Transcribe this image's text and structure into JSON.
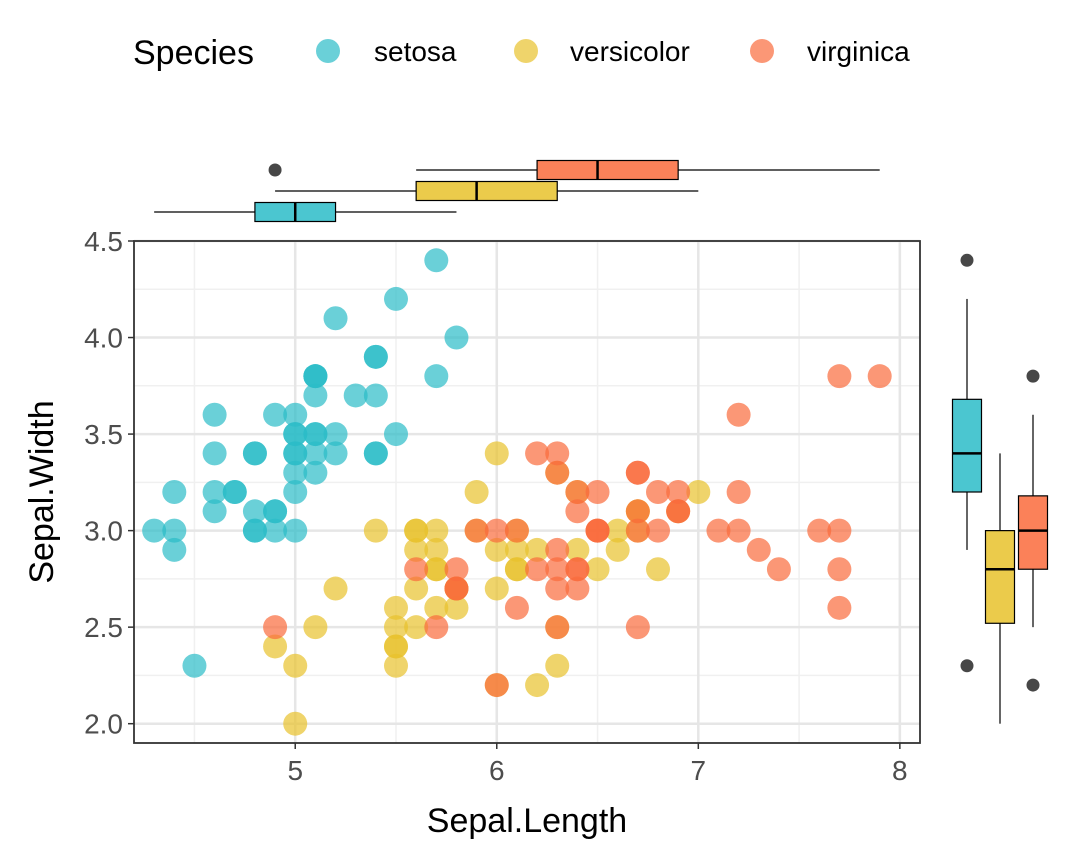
{
  "chart_data": {
    "type": "scatter",
    "xlabel": "Sepal.Length",
    "ylabel": "Sepal.Width",
    "xlim": [
      4.2,
      8.1
    ],
    "ylim": [
      1.9,
      4.5
    ],
    "x_ticks": [
      "5",
      "6",
      "7",
      "8"
    ],
    "y_ticks": [
      "2.0",
      "2.5",
      "3.0",
      "3.5",
      "4.0",
      "4.5"
    ],
    "grid": true,
    "legend": {
      "title": "Species",
      "position": "top",
      "entries": [
        "setosa",
        "versicolor",
        "virginica"
      ]
    },
    "colors": {
      "setosa": "#2bbcc8",
      "versicolor": "#e8c22c",
      "virginica": "#fa6b3c"
    },
    "series": [
      {
        "name": "setosa",
        "x": [
          5.1,
          4.9,
          4.7,
          4.6,
          5.0,
          5.4,
          4.6,
          5.0,
          4.4,
          4.9,
          5.4,
          4.8,
          4.8,
          4.3,
          5.8,
          5.7,
          5.4,
          5.1,
          5.7,
          5.1,
          5.4,
          5.1,
          4.6,
          5.1,
          4.8,
          5.0,
          5.0,
          5.2,
          5.2,
          4.7,
          4.8,
          5.4,
          5.2,
          5.5,
          4.9,
          5.0,
          5.5,
          4.9,
          4.4,
          5.1,
          5.0,
          4.5,
          4.4,
          5.0,
          5.1,
          4.8,
          5.1,
          4.6,
          5.3,
          5.0
        ],
        "y": [
          3.5,
          3.0,
          3.2,
          3.1,
          3.6,
          3.9,
          3.4,
          3.4,
          2.9,
          3.1,
          3.7,
          3.4,
          3.0,
          3.0,
          4.0,
          4.4,
          3.9,
          3.5,
          3.8,
          3.8,
          3.4,
          3.7,
          3.6,
          3.3,
          3.4,
          3.0,
          3.4,
          3.5,
          3.4,
          3.2,
          3.1,
          3.4,
          4.1,
          4.2,
          3.1,
          3.2,
          3.5,
          3.6,
          3.0,
          3.4,
          3.5,
          2.3,
          3.2,
          3.5,
          3.8,
          3.0,
          3.8,
          3.2,
          3.7,
          3.3
        ]
      },
      {
        "name": "versicolor",
        "x": [
          7.0,
          6.4,
          6.9,
          5.5,
          6.5,
          5.7,
          6.3,
          4.9,
          6.6,
          5.2,
          5.0,
          5.9,
          6.0,
          6.1,
          5.6,
          6.7,
          5.6,
          5.8,
          6.2,
          5.6,
          5.9,
          6.1,
          6.3,
          6.1,
          6.4,
          6.6,
          6.8,
          6.7,
          6.0,
          5.7,
          5.5,
          5.5,
          5.8,
          6.0,
          5.4,
          6.0,
          6.7,
          6.3,
          5.6,
          5.5,
          5.5,
          6.1,
          5.8,
          5.0,
          5.6,
          5.7,
          5.7,
          6.2,
          5.1,
          5.7
        ],
        "y": [
          3.2,
          3.2,
          3.1,
          2.3,
          2.8,
          2.8,
          3.3,
          2.4,
          2.9,
          2.7,
          2.0,
          3.0,
          2.2,
          2.9,
          2.9,
          3.1,
          3.0,
          2.7,
          2.2,
          2.5,
          3.2,
          2.8,
          2.5,
          2.8,
          2.9,
          3.0,
          2.8,
          3.0,
          2.9,
          2.6,
          2.4,
          2.4,
          2.7,
          2.7,
          3.0,
          3.4,
          3.1,
          2.3,
          3.0,
          2.5,
          2.6,
          3.0,
          2.6,
          2.3,
          2.7,
          3.0,
          2.9,
          2.9,
          2.5,
          2.8
        ]
      },
      {
        "name": "virginica",
        "x": [
          6.3,
          5.8,
          7.1,
          6.3,
          6.5,
          7.6,
          4.9,
          7.3,
          6.7,
          7.2,
          6.5,
          6.4,
          6.8,
          5.7,
          5.8,
          6.4,
          6.5,
          7.7,
          7.7,
          6.0,
          6.9,
          5.6,
          7.7,
          6.3,
          6.7,
          7.2,
          6.2,
          6.1,
          6.4,
          7.2,
          7.4,
          7.9,
          6.4,
          6.3,
          6.1,
          7.7,
          6.3,
          6.4,
          6.0,
          6.9,
          6.7,
          6.9,
          5.8,
          6.8,
          6.7,
          6.7,
          6.3,
          6.5,
          6.2,
          5.9
        ],
        "y": [
          3.3,
          2.7,
          3.0,
          2.9,
          3.0,
          3.0,
          2.5,
          2.9,
          2.5,
          3.6,
          3.2,
          2.7,
          3.0,
          2.5,
          2.8,
          3.2,
          3.0,
          3.8,
          2.6,
          2.2,
          3.2,
          2.8,
          2.8,
          2.7,
          3.3,
          3.2,
          2.8,
          3.0,
          2.8,
          3.0,
          2.8,
          3.8,
          2.8,
          2.8,
          2.6,
          3.0,
          3.4,
          3.1,
          3.0,
          3.1,
          3.1,
          3.1,
          2.7,
          3.2,
          3.3,
          3.0,
          2.5,
          3.0,
          3.4,
          3.0
        ]
      }
    ],
    "marginal_boxplots": {
      "x": [
        {
          "name": "setosa",
          "min": 4.3,
          "q1": 4.8,
          "median": 5.0,
          "q3": 5.2,
          "max": 5.8,
          "outliers": []
        },
        {
          "name": "versicolor",
          "min": 4.9,
          "q1": 5.6,
          "median": 5.9,
          "q3": 6.3,
          "max": 7.0,
          "outliers": []
        },
        {
          "name": "virginica",
          "min": 5.6,
          "q1": 6.2,
          "median": 6.5,
          "q3": 6.9,
          "max": 7.9,
          "outliers": [
            4.9
          ]
        }
      ],
      "y": [
        {
          "name": "setosa",
          "min": 2.9,
          "q1": 3.2,
          "median": 3.4,
          "q3": 3.68,
          "max": 4.2,
          "outliers": [
            4.4,
            2.3
          ]
        },
        {
          "name": "versicolor",
          "min": 2.0,
          "q1": 2.52,
          "median": 2.8,
          "q3": 3.0,
          "max": 3.4,
          "outliers": []
        },
        {
          "name": "virginica",
          "min": 2.5,
          "q1": 2.8,
          "median": 3.0,
          "q3": 3.18,
          "max": 3.6,
          "outliers": [
            3.8,
            2.2
          ]
        }
      ]
    }
  }
}
